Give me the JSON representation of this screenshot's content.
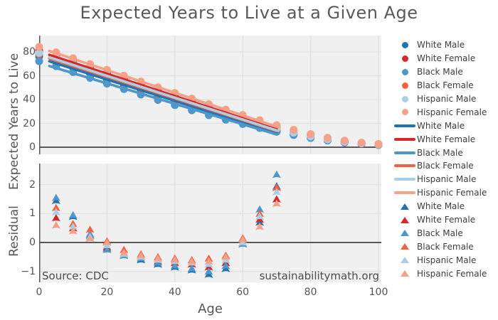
{
  "title": "Expected Years to Live at a Given Age",
  "source_note": "Source: CDC",
  "watermark": "sustainabilitymath.org",
  "colors": {
    "panel_background": "#f0f0f0",
    "gridline": "#e2e2e2",
    "axis_line": "#58585a",
    "white_male": "#2074b4",
    "white_female": "#d62829",
    "black_male": "#4d97ca",
    "black_female": "#f4613e",
    "hispanic_male": "#a9cfe5",
    "hispanic_female": "#f9a089"
  },
  "chart_data": [
    {
      "type": "scatter",
      "panel": "top",
      "title": "Expected Years to Live at a Given Age",
      "xlabel": "Age",
      "ylabel": "Expected Years to Live",
      "x": [
        0,
        5,
        10,
        15,
        20,
        25,
        30,
        35,
        40,
        45,
        50,
        55,
        60,
        65,
        70,
        75,
        80,
        85,
        90,
        95,
        100
      ],
      "xticks": [
        0,
        20,
        40,
        60,
        80,
        100
      ],
      "yticks": [
        0,
        20,
        40,
        60,
        80
      ],
      "xlim": [
        0,
        100.8
      ],
      "ylim": [
        -6,
        94
      ],
      "grid": true,
      "legend_position": "right",
      "fit_line_range": [
        3,
        70
      ],
      "series": [
        {
          "name": "White Male",
          "color_key": "white_male",
          "color": "#2074b4",
          "values": [
            76.3,
            71.8,
            66.9,
            62.0,
            57.2,
            52.6,
            47.9,
            43.2,
            38.6,
            34.0,
            29.6,
            25.3,
            21.2,
            17.4,
            13.8,
            10.7,
            7.9,
            5.7,
            4.0,
            2.8,
            1.9
          ],
          "fit": {
            "intercept": 74.85,
            "slope": -0.899
          }
        },
        {
          "name": "White Female",
          "color_key": "white_female",
          "color": "#d62829",
          "values": [
            81.1,
            76.5,
            71.6,
            66.7,
            61.8,
            56.9,
            52.1,
            47.3,
            42.6,
            37.9,
            33.3,
            28.8,
            24.5,
            20.3,
            16.4,
            12.7,
            9.4,
            6.6,
            4.5,
            3.0,
            2.0
          ],
          "fit": {
            "intercept": 80.32,
            "slope": -0.934
          }
        },
        {
          "name": "Black Male",
          "color_key": "black_male",
          "color": "#4d97ca",
          "values": [
            72.2,
            68.0,
            63.1,
            58.2,
            53.4,
            48.8,
            44.2,
            39.7,
            35.3,
            31.0,
            26.9,
            23.1,
            19.5,
            16.1,
            13.0,
            10.2,
            7.8,
            5.9,
            4.4,
            3.3,
            2.4
          ],
          "fit": {
            "intercept": 70.74,
            "slope": -0.858
          }
        },
        {
          "name": "Black Female",
          "color_key": "black_female",
          "color": "#f4613e",
          "values": [
            78.2,
            73.9,
            68.9,
            64.0,
            59.2,
            54.3,
            49.5,
            44.8,
            40.1,
            35.5,
            31.1,
            26.8,
            22.8,
            19.0,
            15.4,
            12.1,
            9.2,
            6.8,
            5.0,
            3.6,
            2.6
          ],
          "fit": {
            "intercept": 77.25,
            "slope": -0.91
          }
        },
        {
          "name": "Hispanic Male",
          "color_key": "hispanic_male",
          "color": "#a9cfe5",
          "values": [
            79.1,
            74.7,
            69.8,
            64.9,
            60.0,
            55.3,
            50.6,
            45.9,
            41.2,
            36.6,
            32.1,
            27.7,
            23.5,
            19.5,
            15.7,
            12.2,
            9.1,
            6.6,
            4.6,
            3.2,
            2.2
          ],
          "fit": {
            "intercept": 78.23,
            "slope": -0.917
          }
        },
        {
          "name": "Hispanic Female",
          "color_key": "hispanic_female",
          "color": "#f9a089",
          "values": [
            84.2,
            79.6,
            74.7,
            69.8,
            64.9,
            60.0,
            55.1,
            50.3,
            45.5,
            40.8,
            36.1,
            31.5,
            27.0,
            22.7,
            18.5,
            14.6,
            11.0,
            7.9,
            5.5,
            3.8,
            2.6
          ],
          "fit": {
            "intercept": 83.75,
            "slope": -0.951
          }
        }
      ]
    },
    {
      "type": "scatter",
      "panel": "bottom",
      "marker": "triangle-up",
      "xlabel": "Age",
      "ylabel": "Residual",
      "x": [
        5,
        10,
        15,
        20,
        25,
        30,
        35,
        40,
        45,
        50,
        55,
        60,
        65,
        70
      ],
      "xticks": [
        0,
        20,
        40,
        60,
        80,
        100
      ],
      "yticks": [
        -1,
        0,
        1,
        2
      ],
      "xlim": [
        0,
        100.8
      ],
      "ylim": [
        -1.45,
        2.73
      ],
      "grid": true,
      "series": [
        {
          "name": "White Male",
          "color_key": "white_male",
          "color": "#2074b4",
          "values": [
            1.45,
            0.9,
            0.25,
            -0.2,
            -0.45,
            -0.6,
            -0.75,
            -0.85,
            -0.95,
            -1.1,
            -0.9,
            -0.05,
            0.7,
            1.95
          ]
        },
        {
          "name": "White Female",
          "color_key": "white_female",
          "color": "#d62829",
          "values": [
            0.85,
            0.5,
            0.15,
            -0.15,
            -0.4,
            -0.5,
            -0.65,
            -0.7,
            -0.75,
            -0.85,
            -0.7,
            0.0,
            0.8,
            1.5
          ]
        },
        {
          "name": "Black Male",
          "color_key": "black_male",
          "color": "#4d97ca",
          "values": [
            1.55,
            0.95,
            0.3,
            -0.25,
            -0.45,
            -0.55,
            -0.7,
            -0.8,
            -0.9,
            -1.0,
            -0.8,
            -0.05,
            1.15,
            2.35
          ]
        },
        {
          "name": "Black Female",
          "color_key": "black_female",
          "color": "#f4613e",
          "values": [
            1.2,
            0.65,
            0.45,
            0.05,
            -0.25,
            -0.4,
            -0.5,
            -0.55,
            -0.6,
            -0.55,
            -0.45,
            0.15,
            1.0,
            1.9
          ]
        },
        {
          "name": "Hispanic Male",
          "color_key": "hispanic_male",
          "color": "#a9cfe5",
          "values": [
            1.05,
            0.55,
            0.2,
            -0.1,
            -0.4,
            -0.5,
            -0.6,
            -0.65,
            -0.7,
            -0.75,
            -0.6,
            0.0,
            0.9,
            1.75
          ]
        },
        {
          "name": "Hispanic Female",
          "color_key": "hispanic_female",
          "color": "#f9a089",
          "values": [
            0.6,
            0.4,
            0.15,
            0.0,
            -0.35,
            -0.45,
            -0.55,
            -0.6,
            -0.65,
            -0.65,
            -0.5,
            0.1,
            0.55,
            1.35
          ]
        }
      ]
    }
  ],
  "legend": {
    "dot_entries": [
      {
        "label": "White Male",
        "color": "#2074b4"
      },
      {
        "label": "White Female",
        "color": "#d62829"
      },
      {
        "label": "Black Male",
        "color": "#4d97ca"
      },
      {
        "label": "Black Female",
        "color": "#f4613e"
      },
      {
        "label": "Hispanic Male",
        "color": "#a9cfe5"
      },
      {
        "label": "Hispanic Female",
        "color": "#f9a089"
      }
    ],
    "line_entries": [
      {
        "label": "White Male",
        "color": "#2074b4"
      },
      {
        "label": "White Female",
        "color": "#d62829"
      },
      {
        "label": "Black Male",
        "color": "#4d97ca"
      },
      {
        "label": "Black Female",
        "color": "#f4613e"
      },
      {
        "label": "Hispanic Male",
        "color": "#a9cfe5"
      },
      {
        "label": "Hispanic Female",
        "color": "#f9a089"
      }
    ],
    "triangle_entries": [
      {
        "label": "White Male",
        "color": "#2074b4"
      },
      {
        "label": "White Female",
        "color": "#d62829"
      },
      {
        "label": "Black Male",
        "color": "#4d97ca"
      },
      {
        "label": "Black Female",
        "color": "#f4613e"
      },
      {
        "label": "Hispanic Male",
        "color": "#a9cfe5"
      },
      {
        "label": "Hispanic Female",
        "color": "#f9a089"
      }
    ]
  }
}
